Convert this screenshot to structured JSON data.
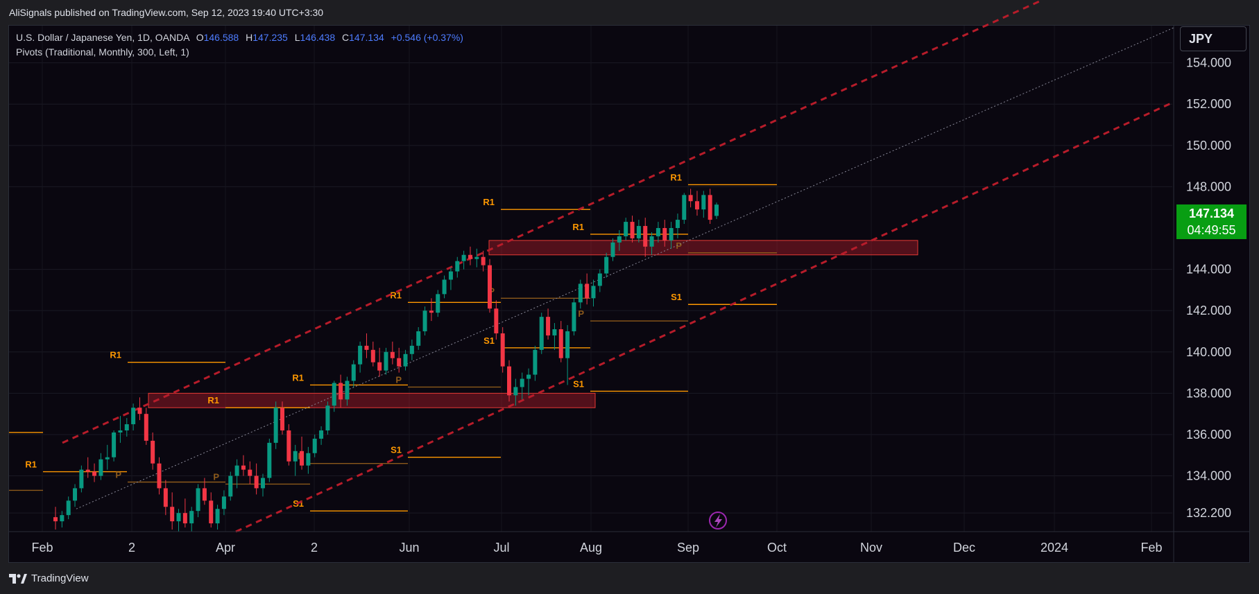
{
  "header": {
    "publisher_line": "AliSignals published on TradingView.com, Sep 12, 2023 19:40 UTC+3:30"
  },
  "legend": {
    "symbol": "U.S. Dollar / Japanese Yen, 1D, OANDA",
    "o_label": "O",
    "o_value": "146.588",
    "h_label": "H",
    "h_value": "147.235",
    "l_label": "L",
    "l_value": "146.438",
    "c_label": "C",
    "c_value": "147.134",
    "change": "+0.546 (+0.37%)",
    "indicator": "Pivots (Traditional, Monthly, 300, Left, 1)"
  },
  "currency_button": "JPY",
  "price_badge": {
    "price": "147.134",
    "countdown": "04:49:55"
  },
  "footer": {
    "brand": "TradingView"
  },
  "colors": {
    "up": "#089981",
    "down": "#f23645",
    "pivot_r": "#ff9800",
    "pivot_p": "#8d5a1b",
    "channel": "#b71c2a",
    "zone": "#b71c2a",
    "badge": "#089e13"
  },
  "chart_data": {
    "type": "candlestick",
    "y_ticks": [
      "154.000",
      "152.000",
      "150.000",
      "148.000",
      "144.000",
      "142.000",
      "140.000",
      "138.000",
      "136.000",
      "134.000",
      "132.200"
    ],
    "y_tick_values": [
      154,
      152,
      150,
      148,
      144,
      142,
      140,
      138,
      136,
      134,
      132.2
    ],
    "x_ticks": [
      "Feb",
      "2",
      "Apr",
      "2",
      "Jun",
      "Jul",
      "Aug",
      "Sep",
      "Oct",
      "Nov",
      "Dec",
      "2024",
      "Feb"
    ],
    "ylim": [
      131.3,
      155.8
    ],
    "last_price": 147.134,
    "ohlc": [
      [
        132.0,
        132.5,
        131.4,
        131.8
      ],
      [
        131.8,
        132.3,
        131.5,
        132.1
      ],
      [
        132.1,
        133.0,
        131.9,
        132.8
      ],
      [
        132.8,
        133.6,
        132.5,
        133.4
      ],
      [
        133.4,
        134.5,
        133.2,
        134.3
      ],
      [
        134.3,
        134.9,
        133.9,
        134.2
      ],
      [
        134.2,
        134.6,
        133.7,
        134.0
      ],
      [
        134.0,
        135.1,
        133.8,
        134.8
      ],
      [
        134.8,
        135.5,
        134.3,
        134.9
      ],
      [
        134.9,
        136.2,
        134.7,
        136.1
      ],
      [
        136.1,
        136.9,
        135.6,
        136.2
      ],
      [
        136.2,
        136.8,
        135.9,
        136.5
      ],
      [
        136.5,
        137.5,
        136.2,
        137.3
      ],
      [
        137.3,
        137.8,
        136.7,
        137.0
      ],
      [
        137.0,
        137.3,
        135.5,
        135.7
      ],
      [
        135.7,
        136.1,
        134.3,
        134.6
      ],
      [
        134.6,
        134.9,
        133.1,
        133.4
      ],
      [
        133.4,
        133.8,
        132.1,
        132.5
      ],
      [
        132.5,
        133.2,
        131.4,
        131.8
      ],
      [
        131.8,
        132.4,
        131.3,
        132.2
      ],
      [
        132.2,
        132.9,
        131.5,
        131.7
      ],
      [
        131.7,
        132.5,
        131.3,
        132.3
      ],
      [
        132.3,
        133.6,
        132.0,
        133.4
      ],
      [
        133.4,
        133.9,
        132.6,
        132.8
      ],
      [
        132.8,
        133.2,
        131.5,
        131.7
      ],
      [
        131.7,
        132.6,
        131.4,
        132.4
      ],
      [
        132.4,
        133.3,
        132.1,
        133.0
      ],
      [
        133.0,
        134.2,
        132.8,
        134.0
      ],
      [
        134.0,
        134.8,
        133.4,
        134.5
      ],
      [
        134.5,
        135.0,
        134.0,
        134.3
      ],
      [
        134.3,
        134.7,
        133.6,
        134.0
      ],
      [
        134.0,
        134.6,
        133.1,
        133.4
      ],
      [
        133.4,
        134.1,
        133.0,
        133.9
      ],
      [
        133.9,
        135.8,
        133.7,
        135.6
      ],
      [
        135.6,
        137.6,
        135.3,
        137.3
      ],
      [
        137.3,
        137.6,
        136.0,
        136.2
      ],
      [
        136.2,
        136.5,
        134.5,
        134.7
      ],
      [
        134.7,
        135.5,
        134.0,
        135.2
      ],
      [
        135.2,
        135.9,
        134.3,
        134.5
      ],
      [
        134.5,
        135.4,
        134.1,
        135.1
      ],
      [
        135.1,
        136.0,
        134.9,
        135.8
      ],
      [
        135.8,
        136.4,
        135.5,
        136.2
      ],
      [
        136.2,
        137.6,
        136.0,
        137.4
      ],
      [
        137.4,
        138.6,
        137.1,
        138.5
      ],
      [
        138.5,
        138.9,
        137.3,
        137.7
      ],
      [
        137.7,
        138.8,
        137.4,
        138.6
      ],
      [
        138.6,
        139.6,
        138.3,
        139.4
      ],
      [
        139.4,
        140.5,
        139.0,
        140.3
      ],
      [
        140.3,
        140.9,
        139.7,
        140.1
      ],
      [
        140.1,
        140.5,
        139.3,
        139.5
      ],
      [
        139.5,
        140.2,
        138.8,
        139.1
      ],
      [
        139.1,
        140.2,
        138.9,
        140.0
      ],
      [
        140.0,
        140.5,
        139.4,
        139.7
      ],
      [
        139.7,
        140.2,
        139.0,
        139.3
      ],
      [
        139.3,
        140.1,
        139.1,
        139.9
      ],
      [
        139.9,
        140.6,
        139.6,
        140.3
      ],
      [
        140.3,
        141.2,
        140.1,
        141.0
      ],
      [
        141.0,
        142.2,
        140.8,
        142.0
      ],
      [
        142.0,
        142.6,
        141.5,
        141.9
      ],
      [
        141.9,
        143.0,
        141.7,
        142.8
      ],
      [
        142.8,
        143.7,
        142.6,
        143.5
      ],
      [
        143.5,
        144.1,
        143.0,
        143.9
      ],
      [
        143.9,
        144.6,
        143.6,
        144.4
      ],
      [
        144.4,
        144.9,
        144.0,
        144.7
      ],
      [
        144.7,
        145.1,
        144.2,
        144.5
      ],
      [
        144.5,
        145.0,
        144.1,
        144.6
      ],
      [
        144.6,
        144.9,
        143.9,
        144.2
      ],
      [
        144.2,
        144.5,
        141.9,
        142.1
      ],
      [
        142.1,
        142.5,
        140.6,
        140.9
      ],
      [
        140.9,
        141.2,
        139.0,
        139.3
      ],
      [
        139.3,
        139.6,
        137.6,
        137.9
      ],
      [
        137.9,
        138.7,
        137.4,
        138.3
      ],
      [
        138.3,
        139.0,
        137.7,
        138.7
      ],
      [
        138.7,
        139.2,
        137.9,
        138.9
      ],
      [
        138.9,
        140.3,
        138.6,
        140.1
      ],
      [
        140.1,
        141.9,
        139.9,
        141.7
      ],
      [
        141.7,
        142.1,
        140.6,
        140.8
      ],
      [
        140.8,
        141.4,
        140.1,
        141.1
      ],
      [
        141.1,
        141.5,
        139.5,
        139.7
      ],
      [
        139.7,
        141.3,
        138.4,
        141.0
      ],
      [
        141.0,
        142.6,
        140.8,
        142.4
      ],
      [
        142.4,
        143.5,
        142.1,
        143.3
      ],
      [
        143.3,
        143.8,
        142.3,
        142.6
      ],
      [
        142.6,
        143.5,
        142.2,
        143.2
      ],
      [
        143.2,
        144.0,
        142.9,
        143.8
      ],
      [
        143.8,
        144.8,
        143.6,
        144.6
      ],
      [
        144.6,
        145.5,
        144.4,
        145.3
      ],
      [
        145.3,
        145.9,
        144.9,
        145.6
      ],
      [
        145.6,
        146.5,
        145.4,
        146.3
      ],
      [
        146.3,
        146.6,
        145.3,
        145.5
      ],
      [
        145.5,
        146.4,
        145.3,
        146.1
      ],
      [
        146.1,
        146.5,
        144.6,
        145.1
      ],
      [
        145.1,
        145.8,
        144.7,
        145.6
      ],
      [
        145.6,
        146.3,
        145.3,
        146.0
      ],
      [
        146.0,
        146.4,
        145.1,
        145.4
      ],
      [
        145.4,
        146.3,
        145.0,
        146.0
      ],
      [
        146.0,
        146.7,
        145.5,
        146.4
      ],
      [
        146.4,
        147.7,
        146.2,
        147.6
      ],
      [
        147.6,
        147.9,
        147.0,
        147.3
      ],
      [
        147.3,
        147.8,
        146.6,
        146.9
      ],
      [
        146.9,
        147.8,
        146.5,
        147.6
      ],
      [
        147.6,
        147.9,
        146.2,
        146.4
      ],
      [
        146.588,
        147.235,
        146.438,
        147.134
      ]
    ]
  }
}
